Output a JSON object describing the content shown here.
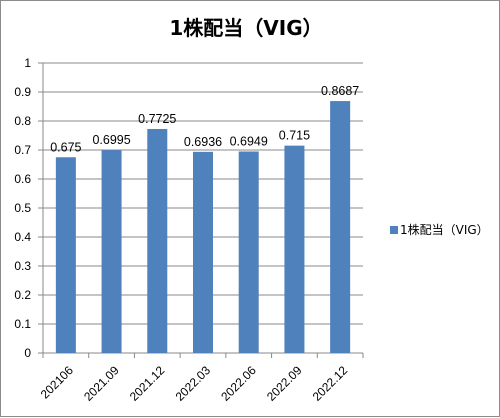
{
  "chart_data": {
    "type": "bar",
    "title": "1株配当（VIG）",
    "categories": [
      "202106",
      "2021.09",
      "2021.12",
      "2022.03",
      "2022.06",
      "2022.09",
      "2022.12"
    ],
    "series": [
      {
        "name": "1株配当（VIG）",
        "values": [
          0.675,
          0.6995,
          0.7725,
          0.6936,
          0.6949,
          0.715,
          0.8687
        ],
        "labels": [
          "0.675",
          "0.6995",
          "0.7725",
          "0.6936",
          "0.6949",
          "0.715",
          "0.8687"
        ],
        "color": "#4f81bd"
      }
    ],
    "ylim": [
      0,
      1
    ],
    "yticks": [
      "0",
      "0.1",
      "0.2",
      "0.3",
      "0.4",
      "0.5",
      "0.6",
      "0.7",
      "0.8",
      "0.9",
      "1"
    ],
    "grid": true,
    "legend_position": "right"
  }
}
